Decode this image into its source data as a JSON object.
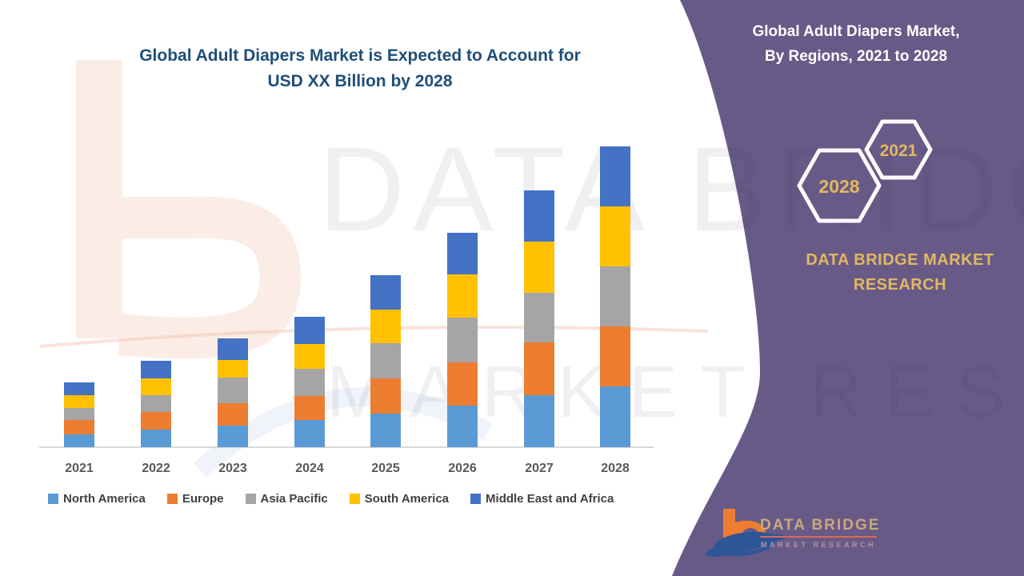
{
  "left_title": {
    "color": "#1F4E79"
  },
  "right_panel": {
    "bg_color": "#685A87",
    "accent_color": "#E2B861",
    "title_line1": "Global Adult Diapers Market,",
    "title_line2": "By Regions, 2021 to 2028",
    "hexagon_top": "2021",
    "hexagon_bottom": "2028",
    "brand_line1": "DATA BRIDGE MARKET",
    "brand_line2": "RESEARCH"
  },
  "footer_logo": {
    "name": "DATA BRIDGE",
    "subtitle": "MARKET RESEARCH"
  },
  "watermarks": {
    "big_line1": "DATA BRIDGE",
    "big_line2": "MARKET RESEARCH"
  },
  "chart_data": {
    "type": "bar",
    "stacked": true,
    "title": "Global Adult Diapers Market is Expected to Account for USD XX Billion by 2028",
    "title_lines": [
      "Global Adult Diapers Market is Expected to Account for",
      "USD XX Billion by 2028"
    ],
    "xlabel": "",
    "ylabel": "",
    "units": "relative units (y-axis not shown; values labeled USD XX Billion)",
    "y_axis_visible": false,
    "grid": false,
    "legend_position": "bottom",
    "ylim": [
      0,
      400
    ],
    "categories": [
      "2021",
      "2022",
      "2023",
      "2024",
      "2025",
      "2026",
      "2027",
      "2028"
    ],
    "series": [
      {
        "name": "North America",
        "color": "#5B9BD5",
        "values": [
          16,
          22,
          27,
          34,
          42,
          52,
          65,
          76
        ]
      },
      {
        "name": "Europe",
        "color": "#ED7D31",
        "values": [
          18,
          22,
          28,
          30,
          44,
          54,
          66,
          75
        ]
      },
      {
        "name": "Asia Pacific",
        "color": "#A5A5A5",
        "values": [
          15,
          21,
          32,
          34,
          44,
          56,
          62,
          75
        ]
      },
      {
        "name": "South America",
        "color": "#FFC000",
        "values": [
          16,
          21,
          22,
          31,
          42,
          54,
          64,
          75
        ]
      },
      {
        "name": "Middle East and Africa",
        "color": "#4472C4",
        "values": [
          16,
          22,
          27,
          34,
          43,
          52,
          64,
          75
        ]
      }
    ],
    "totals": [
      81,
      108,
      136,
      163,
      215,
      268,
      321,
      376
    ]
  }
}
